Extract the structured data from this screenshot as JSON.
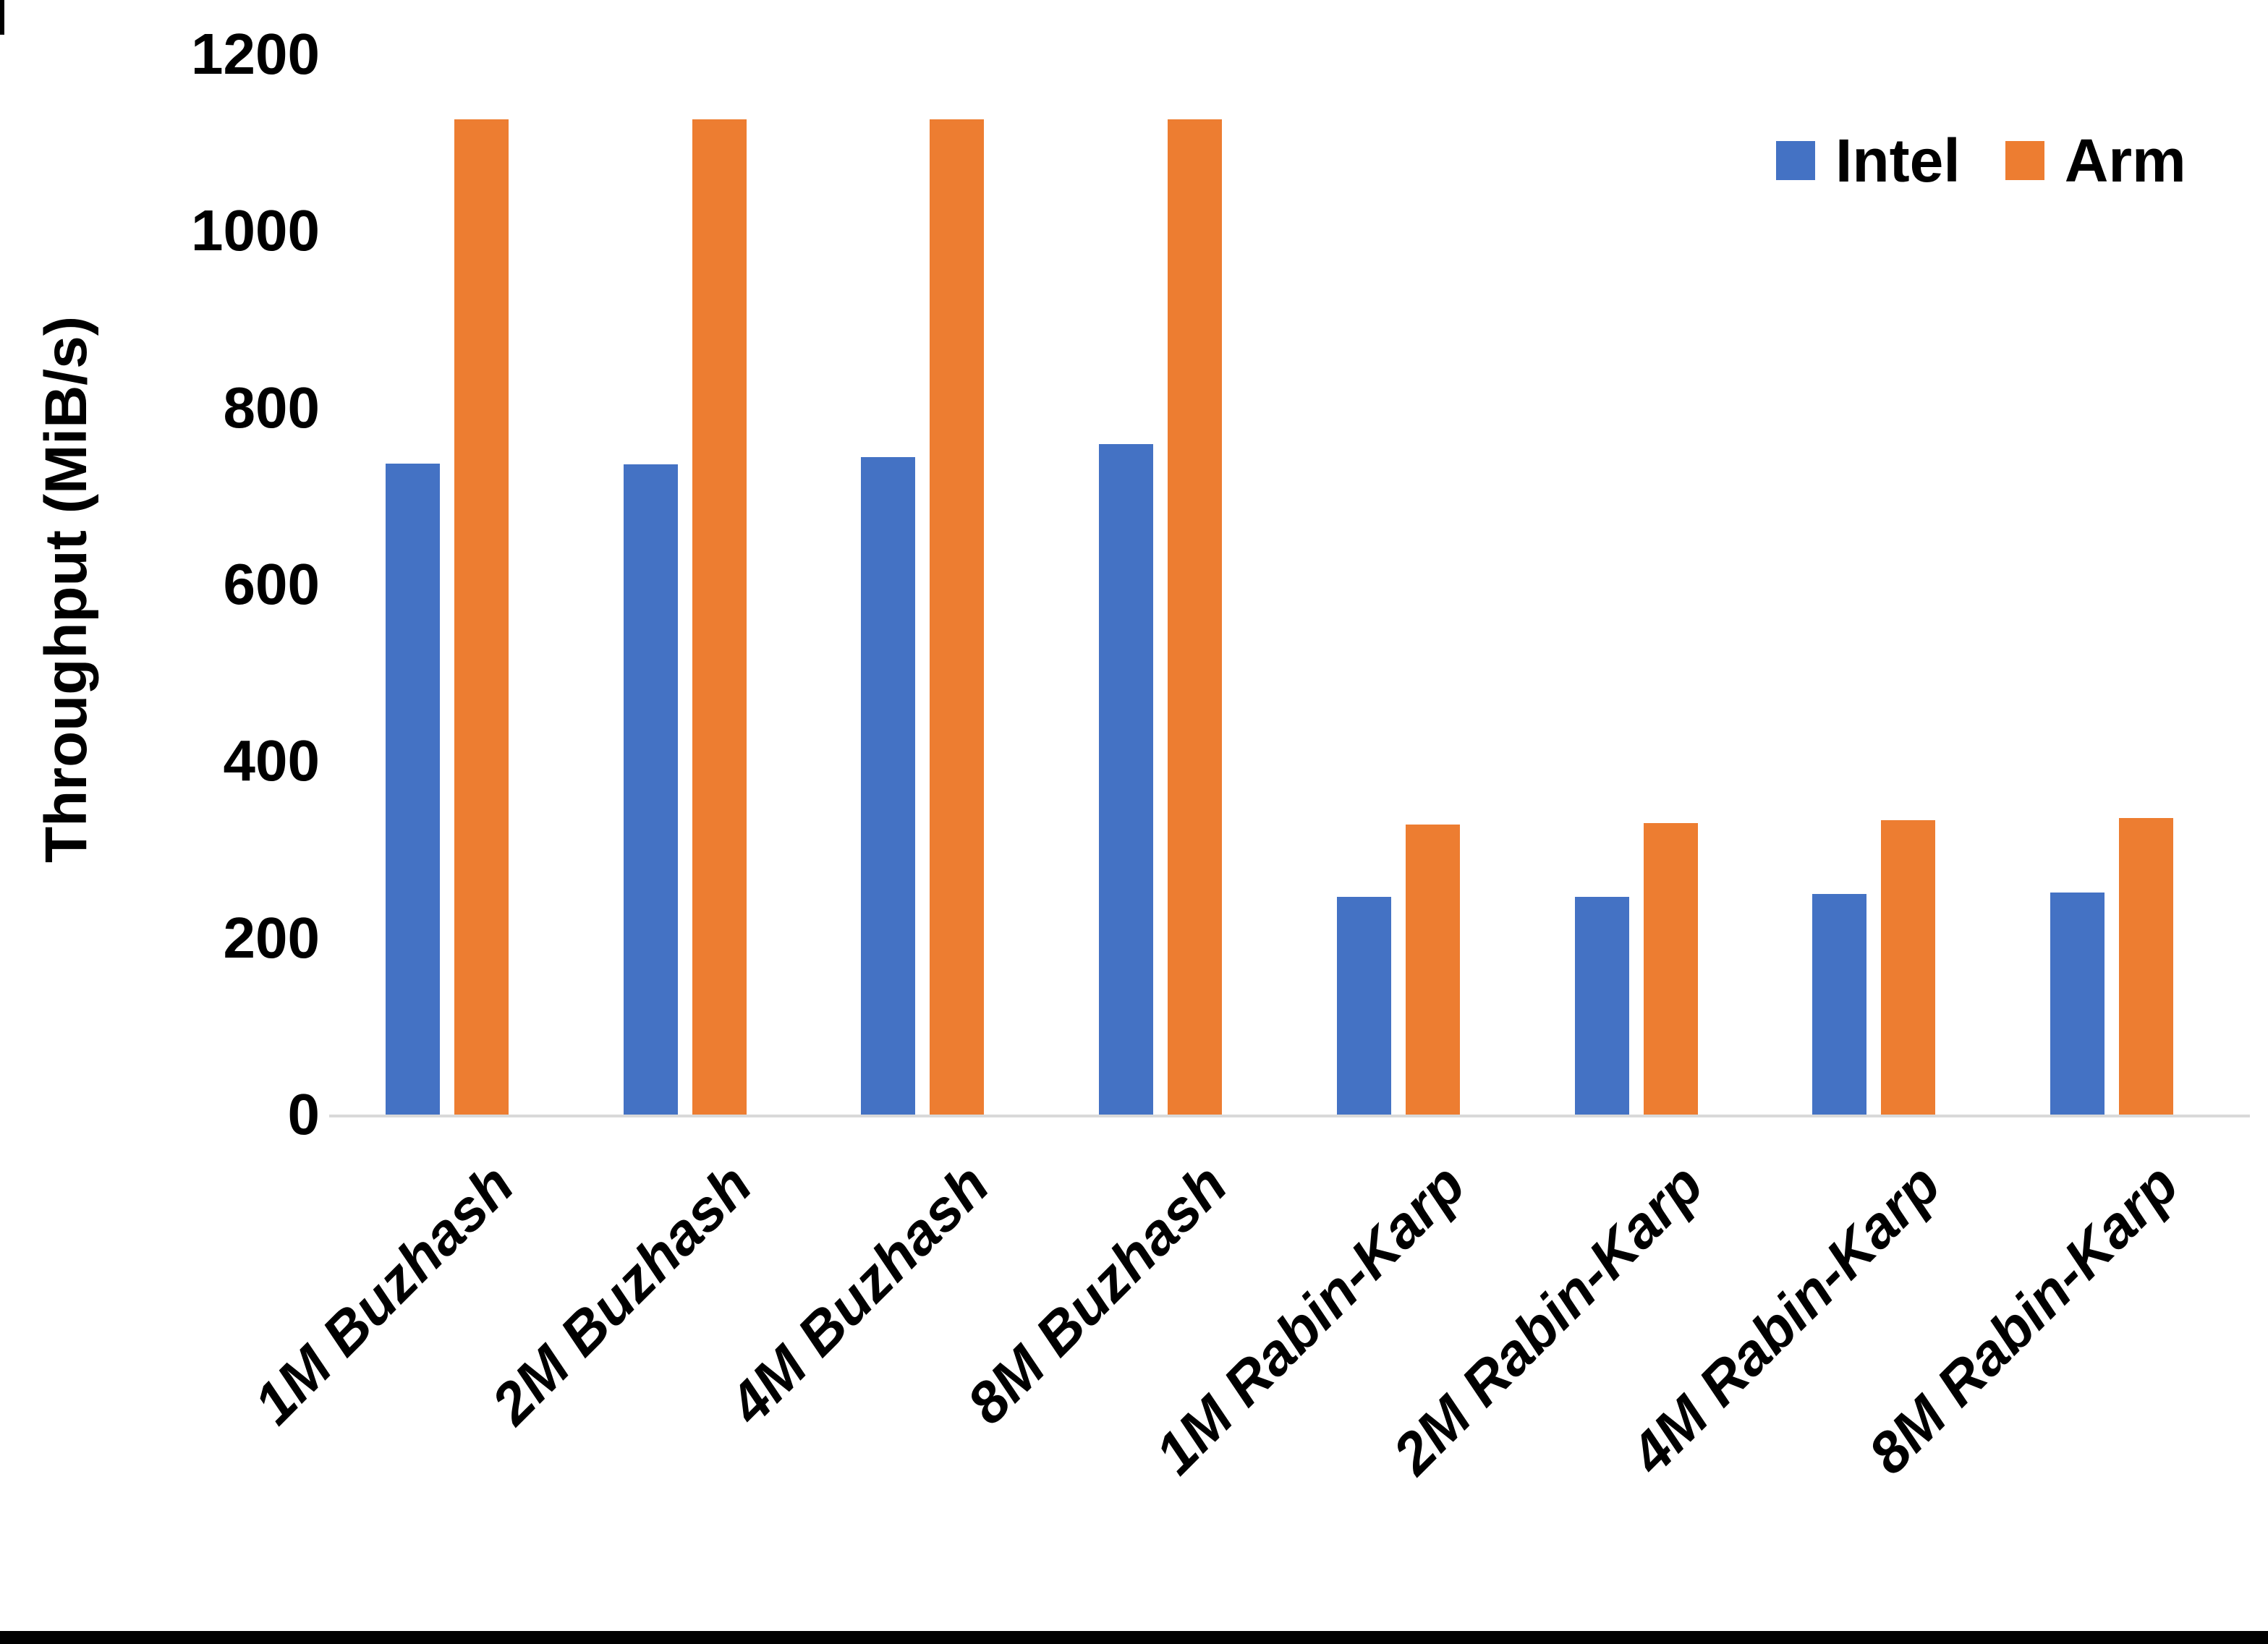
{
  "chart_data": {
    "type": "bar",
    "title": "",
    "ylabel": "Throughput (MiB/s)",
    "xlabel": "",
    "categories": [
      "1M Buzhash",
      "2M Buzhash",
      "4M Buzhash",
      "8M Buzhash",
      "1M Rabin-Karp",
      "2M Rabin-Karp",
      "4M Rabin-Karp",
      "8M Rabin-Karp"
    ],
    "series": [
      {
        "name": "Intel",
        "color": "#4472C4",
        "values": [
          737,
          736,
          744,
          759,
          246,
          246,
          250,
          251
        ]
      },
      {
        "name": "Arm",
        "color": "#ED7D31",
        "values": [
          1126,
          1126,
          1126,
          1126,
          328,
          330,
          333,
          336
        ]
      }
    ],
    "ylim": [
      0,
      1200
    ],
    "yticks": [
      0,
      200,
      400,
      600,
      800,
      1000,
      1200
    ],
    "grid": false,
    "legend_position": "top-right",
    "axis_line_color": "#D9D9D9",
    "text_color": "#000000"
  }
}
